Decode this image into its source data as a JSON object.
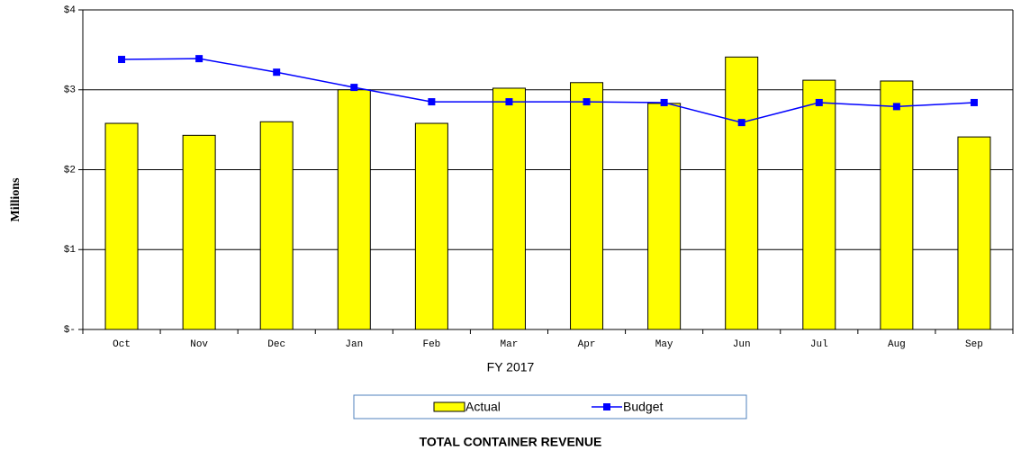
{
  "chart_data": {
    "type": "bar",
    "title": "TOTAL CONTAINER REVENUE",
    "x_label": "FY 2017",
    "y_label": "Millions",
    "categories": [
      "Oct",
      "Nov",
      "Dec",
      "Jan",
      "Feb",
      "Mar",
      "Apr",
      "May",
      "Jun",
      "Jul",
      "Aug",
      "Sep"
    ],
    "series": [
      {
        "name": "Actual",
        "type": "bar",
        "color": "#ffff00",
        "values": [
          2.58,
          2.43,
          2.6,
          3.0,
          2.58,
          3.02,
          3.09,
          2.83,
          3.41,
          3.12,
          3.11,
          2.41
        ]
      },
      {
        "name": "Budget",
        "type": "line",
        "color": "#0000ff",
        "values": [
          3.38,
          3.39,
          3.22,
          3.03,
          2.85,
          2.85,
          2.85,
          2.84,
          2.59,
          2.84,
          2.79,
          2.84
        ]
      }
    ],
    "ylim": [
      0,
      4
    ],
    "yticks": [
      {
        "value": 0,
        "label": "$-"
      },
      {
        "value": 1,
        "label": "$1"
      },
      {
        "value": 2,
        "label": "$2"
      },
      {
        "value": 3,
        "label": "$3"
      },
      {
        "value": 4,
        "label": "$4"
      }
    ],
    "grid": true,
    "legend": "bottom"
  }
}
